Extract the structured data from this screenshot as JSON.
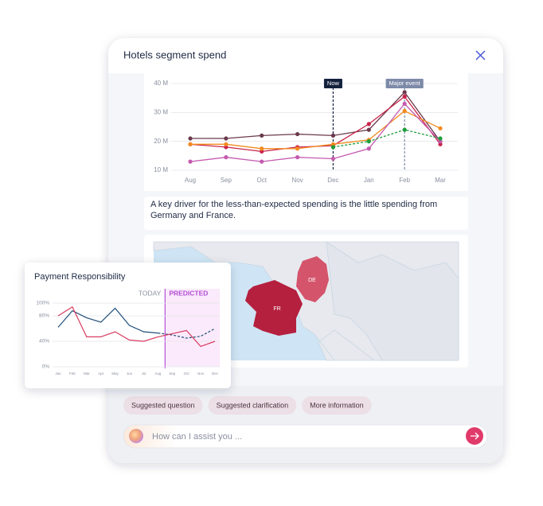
{
  "chart_data": [
    {
      "type": "line",
      "title": "Hotels segment spend",
      "categories": [
        "Aug",
        "Sep",
        "Oct",
        "Nov",
        "Dec",
        "Jan",
        "Feb",
        "Mar"
      ],
      "ylim": [
        10,
        40
      ],
      "yticks": [
        {
          "value": 10,
          "label": "10 M"
        },
        {
          "value": 20,
          "label": "20 M"
        },
        {
          "value": 30,
          "label": "30 M"
        },
        {
          "value": 40,
          "label": "40 M"
        }
      ],
      "grid": true,
      "markers": true,
      "series": [
        {
          "color": "#6b3a4c",
          "values": [
            21,
            21,
            22,
            22.5,
            22,
            24,
            37,
            20
          ]
        },
        {
          "color": "#c8234a",
          "values": [
            19,
            18,
            16.5,
            18,
            18.5,
            26,
            35.5,
            19
          ]
        },
        {
          "color": "#f28a1e",
          "values": [
            19,
            19,
            17.5,
            17.5,
            19,
            20.5,
            30.5,
            24.5
          ]
        },
        {
          "color": "#c45aaf",
          "values": [
            13,
            14.5,
            13,
            14.5,
            14,
            17.5,
            33,
            20
          ]
        },
        {
          "color": "#1e9e3a",
          "dashed": true,
          "values": [
            null,
            null,
            null,
            null,
            18,
            20,
            24,
            21
          ]
        }
      ],
      "annotations": [
        {
          "label": "Now",
          "x": "Dec",
          "color": "#14213d"
        },
        {
          "label": "Major event",
          "x": "Feb",
          "color": "#7d8aa8"
        }
      ]
    },
    {
      "type": "line",
      "title": "Payment Responsibility",
      "categories": [
        "Jan",
        "Feb",
        "Mar",
        "Apr",
        "May",
        "Jun",
        "Jul",
        "Aug",
        "Sep",
        "Oct",
        "Nov",
        "Dec"
      ],
      "ylim": [
        0,
        100
      ],
      "yticks": [
        {
          "value": 0,
          "label": "0%"
        },
        {
          "value": 40,
          "label": "40%"
        },
        {
          "value": 80,
          "label": "80%"
        },
        {
          "value": 100,
          "label": "100%"
        }
      ],
      "grid": true,
      "markers": false,
      "today_label": "TODAY",
      "predicted": {
        "label": "PREDICTED",
        "from": "Sep",
        "color": "#b44fd6"
      },
      "series": [
        {
          "color": "#1f4e79",
          "forecast_dashed": true,
          "values": [
            62,
            88,
            77,
            70,
            92,
            65,
            55,
            53,
            50,
            45,
            48,
            60
          ]
        },
        {
          "color": "#d93a5f",
          "values": [
            80,
            94,
            47,
            47,
            55,
            42,
            40,
            47,
            52,
            57,
            32,
            40
          ]
        }
      ]
    }
  ],
  "insight": "A key driver for the less-than-expected spending is the little spending from Germany and France.",
  "map_labels": [
    "FR",
    "DE"
  ],
  "suggestions": [
    "Suggested question",
    "Suggested clarification",
    "More information"
  ],
  "input_placeholder": "How can I assist you ..."
}
